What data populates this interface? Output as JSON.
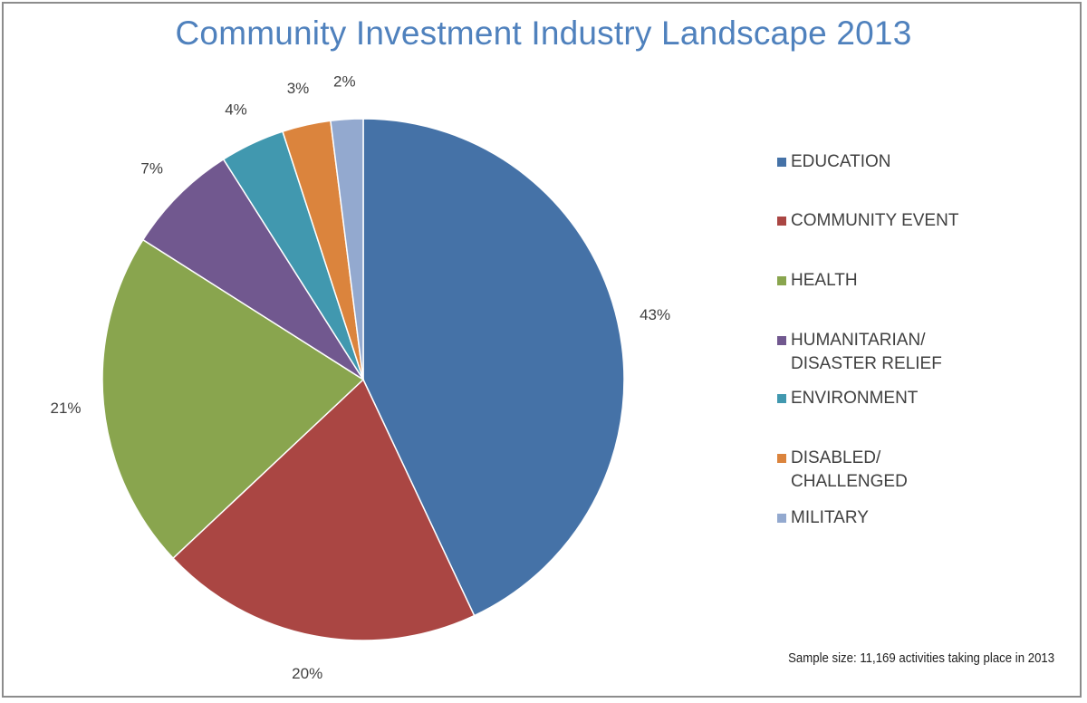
{
  "chart_data": {
    "type": "pie",
    "title": "Community Investment Industry Landscape 2013",
    "categories": [
      "EDUCATION",
      "COMMUNITY EVENT",
      "HEALTH",
      "HUMANITARIAN/\nDISASTER RELIEF",
      "ENVIRONMENT",
      "DISABLED/\nCHALLENGED",
      "MILITARY"
    ],
    "values": [
      43,
      20,
      21,
      7,
      4,
      3,
      2
    ],
    "labels": [
      "43%",
      "20%",
      "21%",
      "7%",
      "4%",
      "3%",
      "2%"
    ],
    "colors": [
      "#4572a7",
      "#aa4643",
      "#89a54e",
      "#71588f",
      "#4198af",
      "#db843d",
      "#93a9cf"
    ],
    "legend_position": "right",
    "footnote": "Sample size: 11,169 activities taking place in 2013"
  }
}
